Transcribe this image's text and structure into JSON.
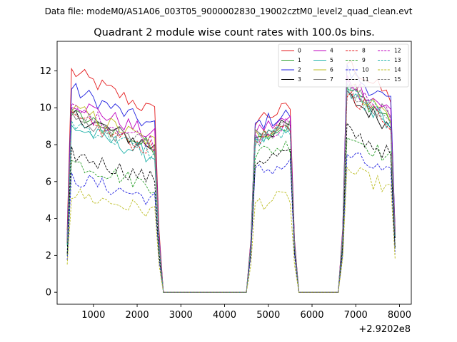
{
  "chart_data": {
    "type": "line",
    "suptitle": "Data file: modeM0/AS1A06_003T05_9000002830_19002cztM0_level2_quad_clean.evt",
    "title": "Quadrant 2 module wise count rates with 100.0s bins.",
    "xlabel": "",
    "ylabel": "",
    "x_offset_label": "+2.9202e8",
    "xlim": [
      170,
      8270
    ],
    "ylim": [
      -0.65,
      13.6
    ],
    "xticks": [
      1000,
      2000,
      3000,
      4000,
      5000,
      6000,
      7000,
      8000
    ],
    "xtick_labels": [
      "1000",
      "2000",
      "3000",
      "4000",
      "5000",
      "6000",
      "7000",
      "8000"
    ],
    "yticks": [
      0,
      2,
      4,
      6,
      8,
      10,
      12
    ],
    "ytick_labels": [
      "0",
      "2",
      "4",
      "6",
      "8",
      "10",
      "12"
    ],
    "grid": false,
    "legend_placement": "top-right",
    "legend_columns": 4,
    "segments": [
      {
        "start": 400,
        "end": 2500
      },
      {
        "start": 4600,
        "end": 5600
      },
      {
        "start": 6700,
        "end": 7900
      }
    ],
    "series": [
      {
        "name": "0",
        "color": "#e41a1c",
        "dash": false,
        "levels": [
          11.2,
          9.5,
          11.5
        ]
      },
      {
        "name": "1",
        "color": "#2ca02c",
        "dash": false,
        "levels": [
          9.0,
          8.6,
          10.2
        ]
      },
      {
        "name": "2",
        "color": "#1f1fe0",
        "dash": false,
        "levels": [
          10.3,
          9.2,
          11.1
        ]
      },
      {
        "name": "3",
        "color": "#000000",
        "dash": false,
        "levels": [
          9.0,
          8.6,
          9.8
        ]
      },
      {
        "name": "4",
        "color": "#bf00bf",
        "dash": false,
        "levels": [
          9.7,
          8.9,
          10.7
        ]
      },
      {
        "name": "5",
        "color": "#20b2aa",
        "dash": false,
        "levels": [
          8.4,
          8.3,
          10.0
        ]
      },
      {
        "name": "6",
        "color": "#bcbd22",
        "dash": false,
        "levels": [
          9.3,
          8.7,
          10.4
        ]
      },
      {
        "name": "7",
        "color": "#7f7f7f",
        "dash": false,
        "levels": [
          8.9,
          8.5,
          10.3
        ]
      },
      {
        "name": "8",
        "color": "#e41a1c",
        "dash": true,
        "levels": [
          8.8,
          8.4,
          10.0
        ]
      },
      {
        "name": "9",
        "color": "#2ca02c",
        "dash": true,
        "levels": [
          6.6,
          7.6,
          7.9
        ]
      },
      {
        "name": "10",
        "color": "#1f1fe0",
        "dash": true,
        "levels": [
          5.8,
          6.6,
          6.9
        ]
      },
      {
        "name": "11",
        "color": "#000000",
        "dash": true,
        "levels": [
          7.0,
          7.2,
          8.1
        ]
      },
      {
        "name": "12",
        "color": "#bf00bf",
        "dash": true,
        "levels": [
          9.3,
          8.6,
          10.4
        ]
      },
      {
        "name": "13",
        "color": "#20b2aa",
        "dash": true,
        "levels": [
          8.6,
          8.3,
          10.1
        ]
      },
      {
        "name": "14",
        "color": "#bcbd22",
        "dash": true,
        "levels": [
          5.0,
          4.9,
          6.1
        ]
      },
      {
        "name": "15",
        "color": "#7f7f7f",
        "dash": true,
        "levels": [
          9.0,
          8.5,
          10.2
        ]
      }
    ]
  }
}
